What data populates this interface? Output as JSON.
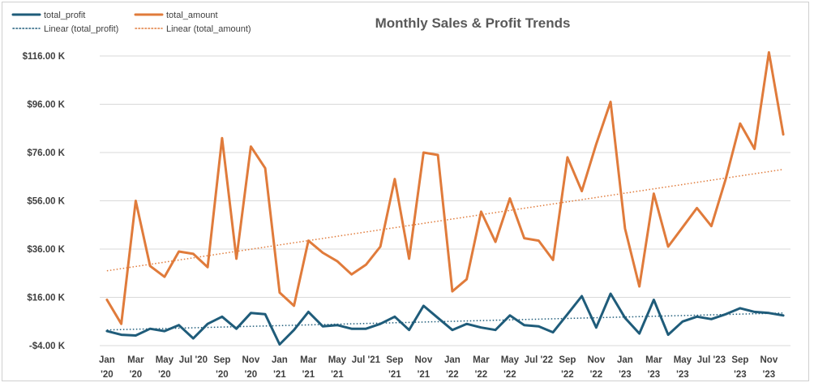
{
  "chart_data": {
    "type": "line",
    "title": "Monthly Sales & Profit Trends",
    "xlabel": "",
    "ylabel": "",
    "ylim": [
      -4,
      116
    ],
    "yticks": [
      -4,
      16,
      36,
      56,
      76,
      96,
      116
    ],
    "ytick_labels": [
      "-$4.00 K",
      "$16.00 K",
      "$36.00 K",
      "$56.00 K",
      "$76.00 K",
      "$96.00 K",
      "$116.00 K"
    ],
    "x": [
      "Jan '20",
      "Feb '20",
      "Mar '20",
      "Apr '20",
      "May '20",
      "Jun '20",
      "Jul '20",
      "Aug '20",
      "Sep '20",
      "Oct '20",
      "Nov '20",
      "Dec '20",
      "Jan '21",
      "Feb '21",
      "Mar '21",
      "Apr '21",
      "May '21",
      "Jun '21",
      "Jul '21",
      "Aug '21",
      "Sep '21",
      "Oct '21",
      "Nov '21",
      "Dec '21",
      "Jan '22",
      "Feb '22",
      "Mar '22",
      "Apr '22",
      "May '22",
      "Jun '22",
      "Jul '22",
      "Aug '22",
      "Sep '22",
      "Oct '22",
      "Nov '22",
      "Dec '22",
      "Jan '23",
      "Feb '23",
      "Mar '23",
      "Apr '23",
      "May '23",
      "Jun '23",
      "Jul '23",
      "Aug '23",
      "Sep '23",
      "Oct '23",
      "Nov '23",
      "Dec '23"
    ],
    "xtick_labels": [
      {
        "index": 0,
        "line1": "Jan",
        "line2": "'20"
      },
      {
        "index": 2,
        "line1": "Mar",
        "line2": "'20"
      },
      {
        "index": 4,
        "line1": "May",
        "line2": "'20"
      },
      {
        "index": 6,
        "line1": "Jul '20",
        "line2": ""
      },
      {
        "index": 8,
        "line1": "Sep",
        "line2": "'20"
      },
      {
        "index": 10,
        "line1": "Nov",
        "line2": "'20"
      },
      {
        "index": 12,
        "line1": "Jan",
        "line2": "'21"
      },
      {
        "index": 14,
        "line1": "Mar",
        "line2": "'21"
      },
      {
        "index": 16,
        "line1": "May",
        "line2": "'21"
      },
      {
        "index": 18,
        "line1": "Jul '21",
        "line2": ""
      },
      {
        "index": 20,
        "line1": "Sep",
        "line2": "'21"
      },
      {
        "index": 22,
        "line1": "Nov",
        "line2": "'21"
      },
      {
        "index": 24,
        "line1": "Jan",
        "line2": "'22"
      },
      {
        "index": 26,
        "line1": "Mar",
        "line2": "'22"
      },
      {
        "index": 28,
        "line1": "May",
        "line2": "'22"
      },
      {
        "index": 30,
        "line1": "Jul '22",
        "line2": ""
      },
      {
        "index": 32,
        "line1": "Sep",
        "line2": "'22"
      },
      {
        "index": 34,
        "line1": "Nov",
        "line2": "'22"
      },
      {
        "index": 36,
        "line1": "Jan",
        "line2": "'23"
      },
      {
        "index": 38,
        "line1": "Mar",
        "line2": "'23"
      },
      {
        "index": 40,
        "line1": "May",
        "line2": "'23"
      },
      {
        "index": 42,
        "line1": "Jul '23",
        "line2": ""
      },
      {
        "index": 44,
        "line1": "Sep",
        "line2": "'23"
      },
      {
        "index": 46,
        "line1": "Nov",
        "line2": "'23"
      }
    ],
    "series": [
      {
        "name": "total_profit",
        "color": "#1f5c7a",
        "values": [
          2.0,
          0.5,
          0.2,
          3.0,
          2.0,
          4.5,
          -1.0,
          5.0,
          8.0,
          3.0,
          9.5,
          9.0,
          -3.5,
          2.5,
          10.0,
          4.0,
          4.5,
          3.0,
          3.0,
          5.0,
          8.0,
          2.5,
          12.5,
          7.5,
          2.5,
          5.0,
          3.5,
          2.5,
          8.5,
          4.5,
          4.0,
          1.5,
          9.0,
          16.5,
          3.5,
          17.5,
          7.5,
          1.0,
          15.0,
          0.5,
          6.0,
          8.0,
          7.0,
          9.0,
          11.5,
          10.0,
          9.5,
          8.5
        ]
      },
      {
        "name": "total_amount",
        "color": "#e07b3b",
        "values": [
          15.0,
          5.0,
          56.0,
          29.0,
          24.5,
          35.0,
          34.0,
          28.5,
          82.0,
          32.0,
          78.5,
          69.5,
          18.0,
          12.5,
          39.5,
          34.5,
          31.0,
          25.5,
          29.5,
          37.0,
          65.0,
          32.0,
          76.0,
          75.0,
          18.5,
          23.5,
          51.5,
          39.0,
          57.0,
          40.5,
          39.5,
          31.5,
          74.0,
          60.0,
          79.5,
          97.0,
          44.5,
          20.5,
          59.0,
          37.0,
          45.0,
          53.0,
          45.5,
          65.0,
          88.0,
          77.5,
          117.5,
          83.5
        ]
      }
    ],
    "trendlines": [
      {
        "name": "Linear (total_profit)",
        "color": "#1f5c7a",
        "start": 2.5,
        "end": 9.5
      },
      {
        "name": "Linear (total_amount)",
        "color": "#e07b3b",
        "start": 27.0,
        "end": 69.0
      }
    ],
    "grid": true,
    "legend_position": "top-left"
  }
}
